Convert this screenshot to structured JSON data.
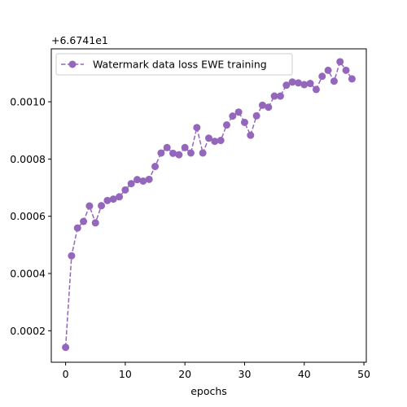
{
  "chart_data": {
    "type": "line",
    "title": "",
    "xlabel": "epochs",
    "ylabel": "",
    "offset_text": "+6.6741e1",
    "xlim": [
      -2.4,
      50.4
    ],
    "ylim": [
      9e-05,
      0.001185
    ],
    "xticks": [
      0,
      10,
      20,
      30,
      40,
      50
    ],
    "xtick_labels": [
      "0",
      "10",
      "20",
      "30",
      "40",
      "50"
    ],
    "yticks": [
      0.0002,
      0.0004,
      0.0006,
      0.0008,
      0.001
    ],
    "ytick_labels": [
      "0.0002",
      "0.0004",
      "0.0006",
      "0.0008",
      "0.0010"
    ],
    "grid": false,
    "legend_position": "upper-left",
    "colors": {
      "series": "#9467bd",
      "axis": "#000000"
    },
    "series": [
      {
        "name": "Watermark data loss EWE training",
        "style": "dashed line with circle markers",
        "x": [
          0,
          1,
          2,
          3,
          4,
          5,
          6,
          7,
          8,
          9,
          10,
          11,
          12,
          13,
          14,
          15,
          16,
          17,
          18,
          19,
          20,
          21,
          22,
          23,
          24,
          25,
          26,
          27,
          28,
          29,
          30,
          31,
          32,
          33,
          34,
          35,
          36,
          37,
          38,
          39,
          40,
          41,
          42,
          43,
          44,
          45,
          46,
          47,
          48
        ],
        "values": [
          0.000142,
          0.000462,
          0.000559,
          0.000582,
          0.000636,
          0.000577,
          0.000637,
          0.000655,
          0.00066,
          0.000668,
          0.000692,
          0.000714,
          0.000728,
          0.000723,
          0.000729,
          0.000774,
          0.000821,
          0.00084,
          0.00082,
          0.000815,
          0.00084,
          0.000821,
          0.00091,
          0.000821,
          0.000873,
          0.000862,
          0.000865,
          0.000919,
          0.00095,
          0.000964,
          0.000928,
          0.000883,
          0.000951,
          0.000988,
          0.000981,
          0.00102,
          0.00102,
          0.001058,
          0.001069,
          0.001066,
          0.00106,
          0.001064,
          0.001043,
          0.001089,
          0.00111,
          0.001072,
          0.00114,
          0.00111,
          0.00108
        ]
      }
    ]
  }
}
